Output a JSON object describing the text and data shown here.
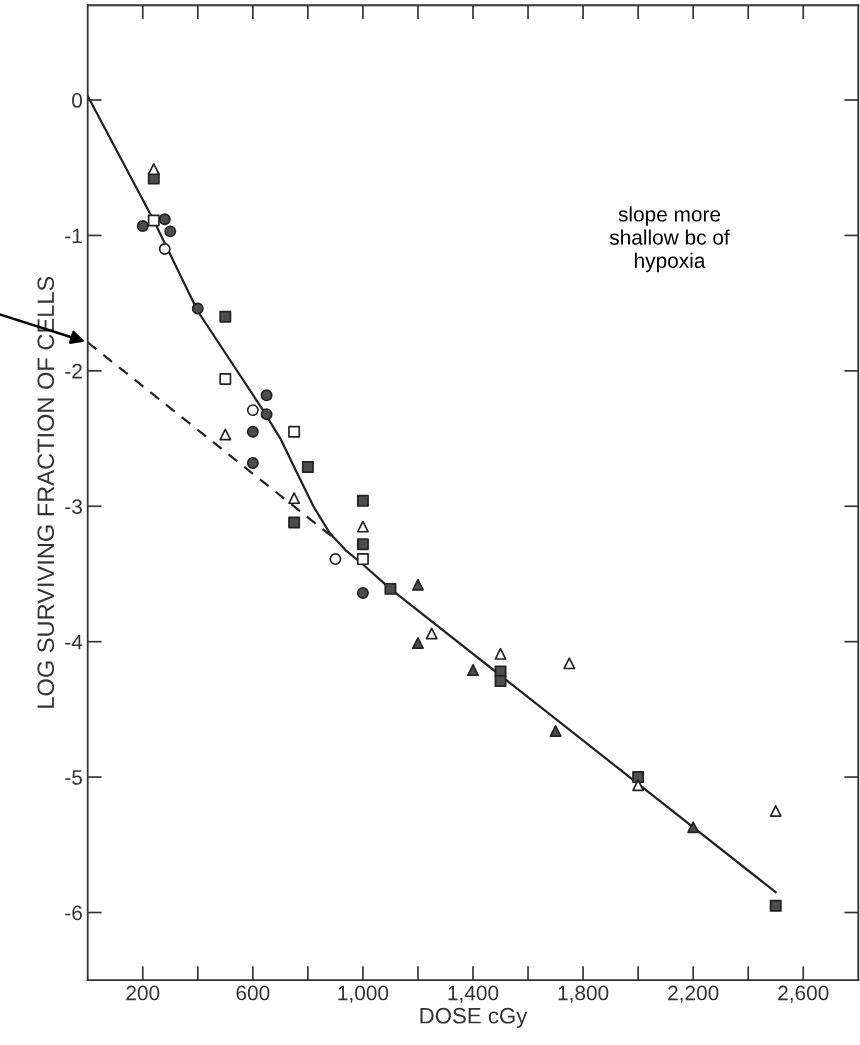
{
  "chart_data": {
    "type": "scatter",
    "xlabel": "DOSE cGy",
    "ylabel": "LOG SURVIVING FRACTION OF CELLS",
    "annotations": [
      "slope more\nshallow bc of\nhypoxia"
    ],
    "xlim": [
      0,
      2800
    ],
    "ylim": [
      -6.5,
      0.7
    ],
    "xticks": [
      {
        "value": 200,
        "label": "200"
      },
      {
        "value": 400,
        "label": null
      },
      {
        "value": 600,
        "label": "600"
      },
      {
        "value": 800,
        "label": null
      },
      {
        "value": 1000,
        "label": "1,000"
      },
      {
        "value": 1200,
        "label": null
      },
      {
        "value": 1400,
        "label": "1,400"
      },
      {
        "value": 1600,
        "label": null
      },
      {
        "value": 1800,
        "label": "1,800"
      },
      {
        "value": 2000,
        "label": null
      },
      {
        "value": 2200,
        "label": "2,200"
      },
      {
        "value": 2400,
        "label": null
      },
      {
        "value": 2600,
        "label": "2,600"
      }
    ],
    "yticks": [
      {
        "value": -6,
        "label": "-6"
      },
      {
        "value": -5,
        "label": "-5"
      },
      {
        "value": -4,
        "label": "-4"
      },
      {
        "value": -3,
        "label": "-3"
      },
      {
        "value": -2,
        "label": "-2"
      },
      {
        "value": -1,
        "label": "-1"
      },
      {
        "value": 0,
        "label": "0"
      }
    ],
    "grid": false,
    "legend": false,
    "series": [
      {
        "type": "line",
        "color": "#222222",
        "line_style": "solid",
        "marker": "none",
        "x": [
          0,
          240,
          400,
          640,
          700,
          760,
          820,
          880,
          940,
          1000,
          1100,
          2500
        ],
        "values": [
          0.03,
          -0.89,
          -1.56,
          -2.3,
          -2.5,
          -2.75,
          -3.0,
          -3.2,
          -3.33,
          -3.43,
          -3.61,
          -5.85
        ]
      },
      {
        "type": "line",
        "color": "#222222",
        "line_style": "dashed",
        "marker": "none",
        "x": [
          0,
          910
        ],
        "values": [
          -1.79,
          -3.26
        ]
      },
      {
        "color": "#4d4d4d",
        "marker": "circle",
        "x": [
          200,
          280,
          300,
          400,
          650,
          650,
          600,
          600,
          1000
        ],
        "values": [
          -0.93,
          -0.88,
          -0.97,
          -1.54,
          -2.18,
          -2.32,
          -2.45,
          -2.68,
          -3.64
        ]
      },
      {
        "color": "#ffffff",
        "marker": "circle",
        "x": [
          280,
          600,
          900
        ],
        "values": [
          -1.1,
          -2.29,
          -3.39
        ]
      },
      {
        "color": "#4d4d4d",
        "marker": "square",
        "x": [
          240,
          500,
          800,
          750,
          1000,
          1000,
          1100,
          1500,
          1500,
          2000,
          2500
        ],
        "values": [
          -0.58,
          -1.6,
          -2.71,
          -3.12,
          -2.96,
          -3.28,
          -3.61,
          -4.22,
          -4.29,
          -5.0,
          -5.95
        ]
      },
      {
        "color": "#ffffff",
        "marker": "square",
        "x": [
          240,
          500,
          750,
          1000
        ],
        "values": [
          -0.89,
          -2.06,
          -2.45,
          -3.39
        ]
      },
      {
        "color": "#4d4d4d",
        "marker": "triangle",
        "x": [
          1200,
          1200,
          1400,
          1700,
          2200
        ],
        "values": [
          -3.58,
          -4.01,
          -4.21,
          -4.66,
          -5.37
        ]
      },
      {
        "color": "#ffffff",
        "marker": "triangle",
        "x": [
          240,
          500,
          750,
          1000,
          1250,
          1500,
          1750,
          2000,
          2500
        ],
        "values": [
          -0.51,
          -2.47,
          -2.94,
          -3.15,
          -3.94,
          -4.09,
          -4.16,
          -5.06,
          -5.25
        ]
      }
    ]
  }
}
